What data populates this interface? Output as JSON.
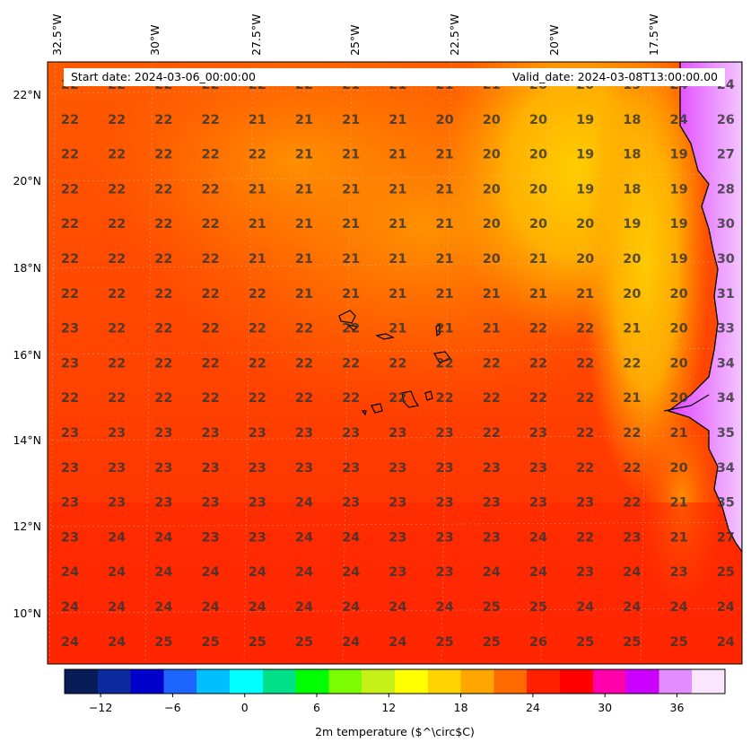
{
  "header": {
    "start_date": "Start date: 2024-03-06_00:00:00",
    "valid_date": "Valid_date: 2024-03-08T13:00:00.00"
  },
  "lon_labels": [
    "32.5°W",
    "30°W",
    "27.5°W",
    "25°W",
    "22.5°W",
    "20°W",
    "17.5°W"
  ],
  "lat_labels": [
    "22°N",
    "20°N",
    "18°N",
    "16°N",
    "14°N",
    "12°N",
    "10°N"
  ],
  "colorbar": {
    "label": "2m temperature ($^\\circ$C)",
    "ticks": [
      "−12",
      "−6",
      "0",
      "6",
      "12",
      "18",
      "24",
      "30",
      "36"
    ],
    "tick_values": [
      -12,
      -6,
      0,
      6,
      12,
      18,
      24,
      30,
      36
    ],
    "range": [
      -15,
      40
    ],
    "colors": [
      "#081d58",
      "#0a2a9e",
      "#0000cd",
      "#1e64ff",
      "#00bfff",
      "#00ffff",
      "#00e08a",
      "#00ff00",
      "#7cfc00",
      "#c6f21a",
      "#ffff00",
      "#ffd200",
      "#ffa500",
      "#ff6a00",
      "#ff2000",
      "#ff0000",
      "#ff00aa",
      "#cc00ff",
      "#e28cff",
      "#fbe6ff"
    ]
  },
  "map": {
    "title": "2m temperature (°C)",
    "background": "#ff3a00",
    "temperature_grid": [
      [
        "22",
        "22",
        "22",
        "22",
        "22",
        "22",
        "21",
        "21",
        "21",
        "21",
        "20",
        "20",
        "19",
        "24",
        "24"
      ],
      [
        "22",
        "22",
        "22",
        "22",
        "21",
        "21",
        "21",
        "21",
        "20",
        "20",
        "20",
        "19",
        "18",
        "24",
        "26"
      ],
      [
        "22",
        "22",
        "22",
        "22",
        "22",
        "21",
        "21",
        "21",
        "21",
        "20",
        "20",
        "19",
        "18",
        "19",
        "27"
      ],
      [
        "22",
        "22",
        "22",
        "22",
        "21",
        "21",
        "21",
        "21",
        "21",
        "20",
        "20",
        "19",
        "18",
        "19",
        "28"
      ],
      [
        "22",
        "22",
        "22",
        "22",
        "21",
        "21",
        "21",
        "21",
        "21",
        "20",
        "20",
        "20",
        "19",
        "19",
        "30"
      ],
      [
        "22",
        "22",
        "22",
        "22",
        "21",
        "21",
        "21",
        "21",
        "21",
        "20",
        "21",
        "20",
        "20",
        "19",
        "30"
      ],
      [
        "22",
        "22",
        "22",
        "22",
        "22",
        "21",
        "21",
        "21",
        "21",
        "21",
        "21",
        "21",
        "20",
        "20",
        "31"
      ],
      [
        "23",
        "22",
        "22",
        "22",
        "22",
        "22",
        "22",
        "21",
        "21",
        "21",
        "22",
        "22",
        "21",
        "20",
        "33"
      ],
      [
        "23",
        "22",
        "22",
        "22",
        "22",
        "22",
        "22",
        "22",
        "22",
        "22",
        "22",
        "22",
        "22",
        "20",
        "34"
      ],
      [
        "22",
        "22",
        "22",
        "22",
        "22",
        "22",
        "22",
        "22",
        "22",
        "22",
        "22",
        "22",
        "21",
        "20",
        "34"
      ],
      [
        "23",
        "23",
        "23",
        "23",
        "23",
        "23",
        "23",
        "23",
        "23",
        "22",
        "23",
        "22",
        "22",
        "21",
        "35"
      ],
      [
        "23",
        "23",
        "23",
        "23",
        "23",
        "23",
        "23",
        "23",
        "23",
        "23",
        "23",
        "22",
        "22",
        "20",
        "34"
      ],
      [
        "23",
        "23",
        "23",
        "23",
        "23",
        "24",
        "23",
        "23",
        "23",
        "23",
        "23",
        "23",
        "22",
        "21",
        "35"
      ],
      [
        "23",
        "24",
        "24",
        "23",
        "23",
        "24",
        "24",
        "23",
        "23",
        "23",
        "24",
        "22",
        "23",
        "21",
        "27"
      ],
      [
        "24",
        "24",
        "24",
        "24",
        "24",
        "24",
        "24",
        "23",
        "23",
        "24",
        "24",
        "23",
        "24",
        "23",
        "25"
      ],
      [
        "24",
        "24",
        "24",
        "24",
        "24",
        "24",
        "24",
        "24",
        "24",
        "25",
        "25",
        "24",
        "24",
        "24",
        "24"
      ],
      [
        "24",
        "24",
        "25",
        "25",
        "25",
        "25",
        "24",
        "24",
        "25",
        "25",
        "26",
        "25",
        "25",
        "25",
        "24"
      ]
    ]
  }
}
